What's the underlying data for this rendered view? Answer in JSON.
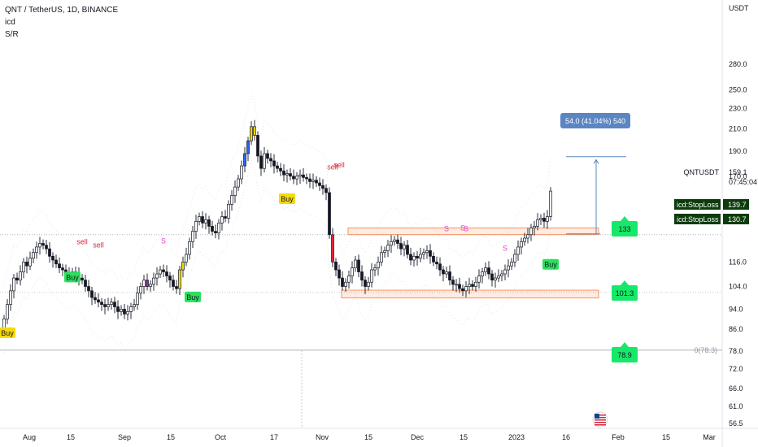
{
  "header": {
    "symbol_line": "QNT / TetherUS, 1D, BINANCE",
    "indicator_1": "icd",
    "indicator_2": "S/R"
  },
  "chart_data": {
    "type": "candlestick",
    "title": "QNT / TetherUS, 1D, BINANCE",
    "currency_label": "USDT",
    "symbol_label": "QNTUSDT",
    "y_scale": "log",
    "ylim": [
      55,
      320
    ],
    "y_ticks": [
      "280.0",
      "250.0",
      "230.0",
      "210.0",
      "190.0",
      "170.0",
      "116.0",
      "104.0",
      "94.0",
      "86.0",
      "78.0",
      "72.0",
      "66.0",
      "61.0",
      "56.5"
    ],
    "x_ticks": [
      "Aug",
      "15",
      "Sep",
      "15",
      "Oct",
      "17",
      "Nov",
      "15",
      "Dec",
      "15",
      "2023",
      "16",
      "Feb",
      "15",
      "Mar"
    ],
    "last_price": "159.1",
    "countdown": "07:45:04",
    "measure_label": "54.0 (41.04%) 540",
    "stoploss_1": {
      "label": "icd:StopLoss 1",
      "value": "139.7"
    },
    "stoploss_2": {
      "label": "icd:StopLoss 2",
      "value": "130.7"
    },
    "level_labels": [
      "133",
      "101.3",
      "78.9"
    ],
    "fib_label": "0(78.3)",
    "signal_labels": [
      {
        "text": "Buy",
        "date": "Jul 31"
      },
      {
        "text": "Buy",
        "date": "Aug 9"
      },
      {
        "text": "Buy",
        "date": "Sep 22"
      },
      {
        "text": "Buy",
        "date": "Oct 18"
      },
      {
        "text": "Buy",
        "date": "Jan 9"
      },
      {
        "text": "sell",
        "date": "Aug 12"
      },
      {
        "text": "sell",
        "date": "Aug 13"
      },
      {
        "text": "sell",
        "date": "Oct 31"
      },
      {
        "text": "sell",
        "date": "Nov 2"
      }
    ],
    "s_markers": [
      "S",
      "S",
      "S",
      "S",
      "S"
    ],
    "daily_closes_from_jul30": [
      90,
      96,
      102,
      108,
      107,
      111,
      116,
      114,
      118,
      121,
      124,
      126,
      125,
      123,
      119,
      117,
      115,
      113,
      112,
      110,
      109,
      111,
      110,
      108,
      107,
      104,
      102,
      99,
      98,
      97,
      96,
      95,
      96,
      97,
      95,
      93,
      94,
      92,
      93,
      95,
      96,
      101,
      104,
      107,
      104,
      105,
      108,
      110,
      112,
      111,
      109,
      107,
      104,
      103,
      112,
      116,
      120,
      127,
      133,
      139,
      142,
      138,
      140,
      136,
      133,
      132,
      138,
      142,
      141,
      150,
      156,
      162,
      168,
      178,
      188,
      199,
      212,
      204,
      186,
      176,
      188,
      184,
      182,
      178,
      176,
      174,
      171,
      172,
      170,
      168,
      170,
      171,
      169,
      168,
      166,
      167,
      165,
      163,
      161,
      158,
      131,
      116,
      112,
      108,
      104,
      106,
      109,
      113,
      117,
      111,
      107,
      104,
      106,
      112,
      113,
      116,
      121,
      122,
      125,
      127,
      128,
      126,
      123,
      125,
      120,
      117,
      119,
      118,
      120,
      121,
      122,
      119,
      116,
      115,
      112,
      110,
      111,
      107,
      105,
      105,
      103,
      102,
      104,
      105,
      104,
      106,
      109,
      111,
      113,
      110,
      107,
      108,
      109,
      110,
      112,
      114,
      116,
      120,
      124,
      127,
      129,
      131,
      135,
      136,
      140,
      141,
      139,
      142,
      159.1
    ]
  },
  "markers": {
    "flag_icon": "us-flag-icon"
  },
  "colors": {
    "up": "#131722",
    "down": "#131722",
    "accent_blue": "#5b86c2",
    "zone": "#f57c3b",
    "green": "#17e86a",
    "label_dark": "#0c3c0c",
    "buy_yellow": "#f5d90a",
    "buy_green": "#2be05e",
    "sell": "#e0243a",
    "s_magenta": "#e040c8"
  }
}
